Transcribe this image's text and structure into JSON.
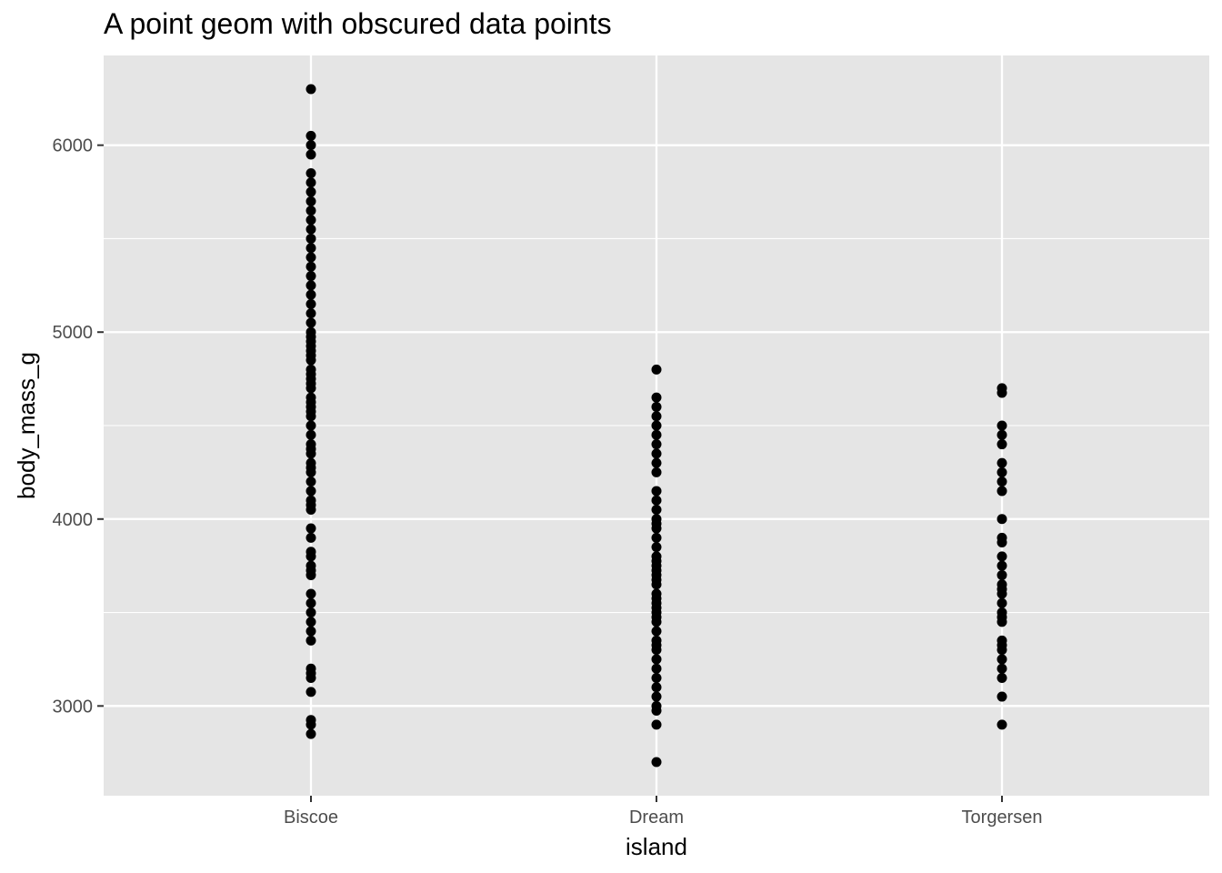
{
  "chart_data": {
    "type": "scatter",
    "title": "A point geom with obscured data points",
    "xlabel": "island",
    "ylabel": "body_mass_g",
    "categories": [
      "Biscoe",
      "Dream",
      "Torgersen"
    ],
    "ylim": [
      2520,
      6480
    ],
    "yticks": [
      3000,
      4000,
      5000,
      6000
    ],
    "grid": true,
    "colors": {
      "panel": "#e5e5e5",
      "grid": "#ffffff",
      "point": "#000000",
      "tick": "#333333"
    },
    "points": {
      "Biscoe": [
        2850,
        2900,
        2925,
        3075,
        3150,
        3175,
        3200,
        3350,
        3400,
        3450,
        3500,
        3550,
        3600,
        3700,
        3725,
        3750,
        3800,
        3825,
        3900,
        3950,
        4050,
        4075,
        4100,
        4150,
        4200,
        4250,
        4275,
        4300,
        4350,
        4375,
        4400,
        4450,
        4500,
        4550,
        4575,
        4600,
        4625,
        4650,
        4700,
        4725,
        4750,
        4775,
        4800,
        4850,
        4875,
        4900,
        4925,
        4950,
        4975,
        5000,
        5050,
        5100,
        5150,
        5200,
        5250,
        5300,
        5350,
        5400,
        5450,
        5500,
        5550,
        5600,
        5650,
        5700,
        5750,
        5800,
        5850,
        5950,
        6000,
        6050,
        6300
      ],
      "Dream": [
        2700,
        2900,
        2975,
        3000,
        3050,
        3100,
        3150,
        3200,
        3250,
        3300,
        3325,
        3350,
        3400,
        3450,
        3475,
        3500,
        3525,
        3550,
        3575,
        3600,
        3650,
        3675,
        3700,
        3725,
        3750,
        3775,
        3800,
        3850,
        3900,
        3950,
        3975,
        4000,
        4050,
        4100,
        4150,
        4250,
        4300,
        4350,
        4400,
        4450,
        4500,
        4550,
        4600,
        4650,
        4800
      ],
      "Torgersen": [
        2900,
        3050,
        3150,
        3200,
        3250,
        3300,
        3325,
        3350,
        3450,
        3475,
        3500,
        3550,
        3600,
        3625,
        3650,
        3700,
        3750,
        3800,
        3875,
        3900,
        4000,
        4150,
        4200,
        4250,
        4300,
        4400,
        4450,
        4500,
        4675,
        4700
      ]
    }
  }
}
